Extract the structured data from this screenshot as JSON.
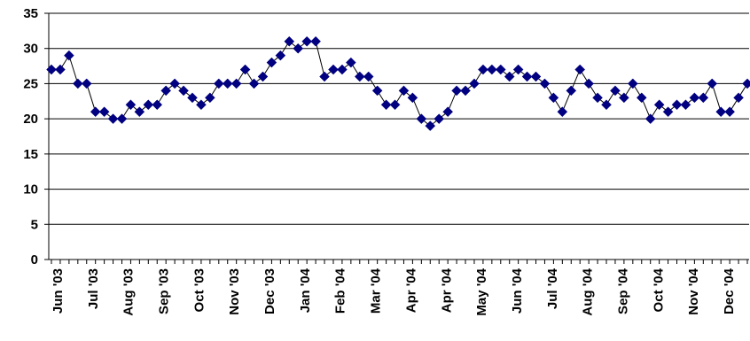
{
  "chart_data": {
    "type": "line",
    "title": "",
    "xlabel": "",
    "ylabel": "",
    "ylim": [
      0,
      35
    ],
    "yticks": [
      0,
      5,
      10,
      15,
      20,
      25,
      30,
      35
    ],
    "grid": true,
    "x_tick_labels": [
      "Jun '03",
      "Jul '03",
      "Aug '03",
      "Sep '03",
      "Oct '03",
      "Nov '03",
      "Dec '03",
      "Jan '04",
      "Feb '04",
      "Mar '04",
      "Apr '04",
      "Apr '04",
      "May '04",
      "Jun '04",
      "Jul '04",
      "Aug '04",
      "Sep '04",
      "Oct '04",
      "Nov '04",
      "Dec '04"
    ],
    "series": [
      {
        "color": "#000080",
        "marker": "diamond",
        "values": [
          27,
          27,
          29,
          25,
          25,
          21,
          21,
          20,
          20,
          22,
          21,
          22,
          22,
          24,
          25,
          24,
          23,
          22,
          23,
          25,
          25,
          25,
          27,
          25,
          26,
          28,
          29,
          31,
          30,
          31,
          31,
          26,
          27,
          27,
          28,
          26,
          26,
          24,
          22,
          22,
          24,
          23,
          20,
          19,
          20,
          21,
          24,
          24,
          25,
          27,
          27,
          27,
          26,
          27,
          26,
          26,
          25,
          23,
          21,
          24,
          27,
          25,
          23,
          22,
          24,
          23,
          25,
          23,
          20,
          22,
          21,
          22,
          22,
          23,
          23,
          25,
          21,
          21,
          23,
          25
        ]
      }
    ]
  }
}
